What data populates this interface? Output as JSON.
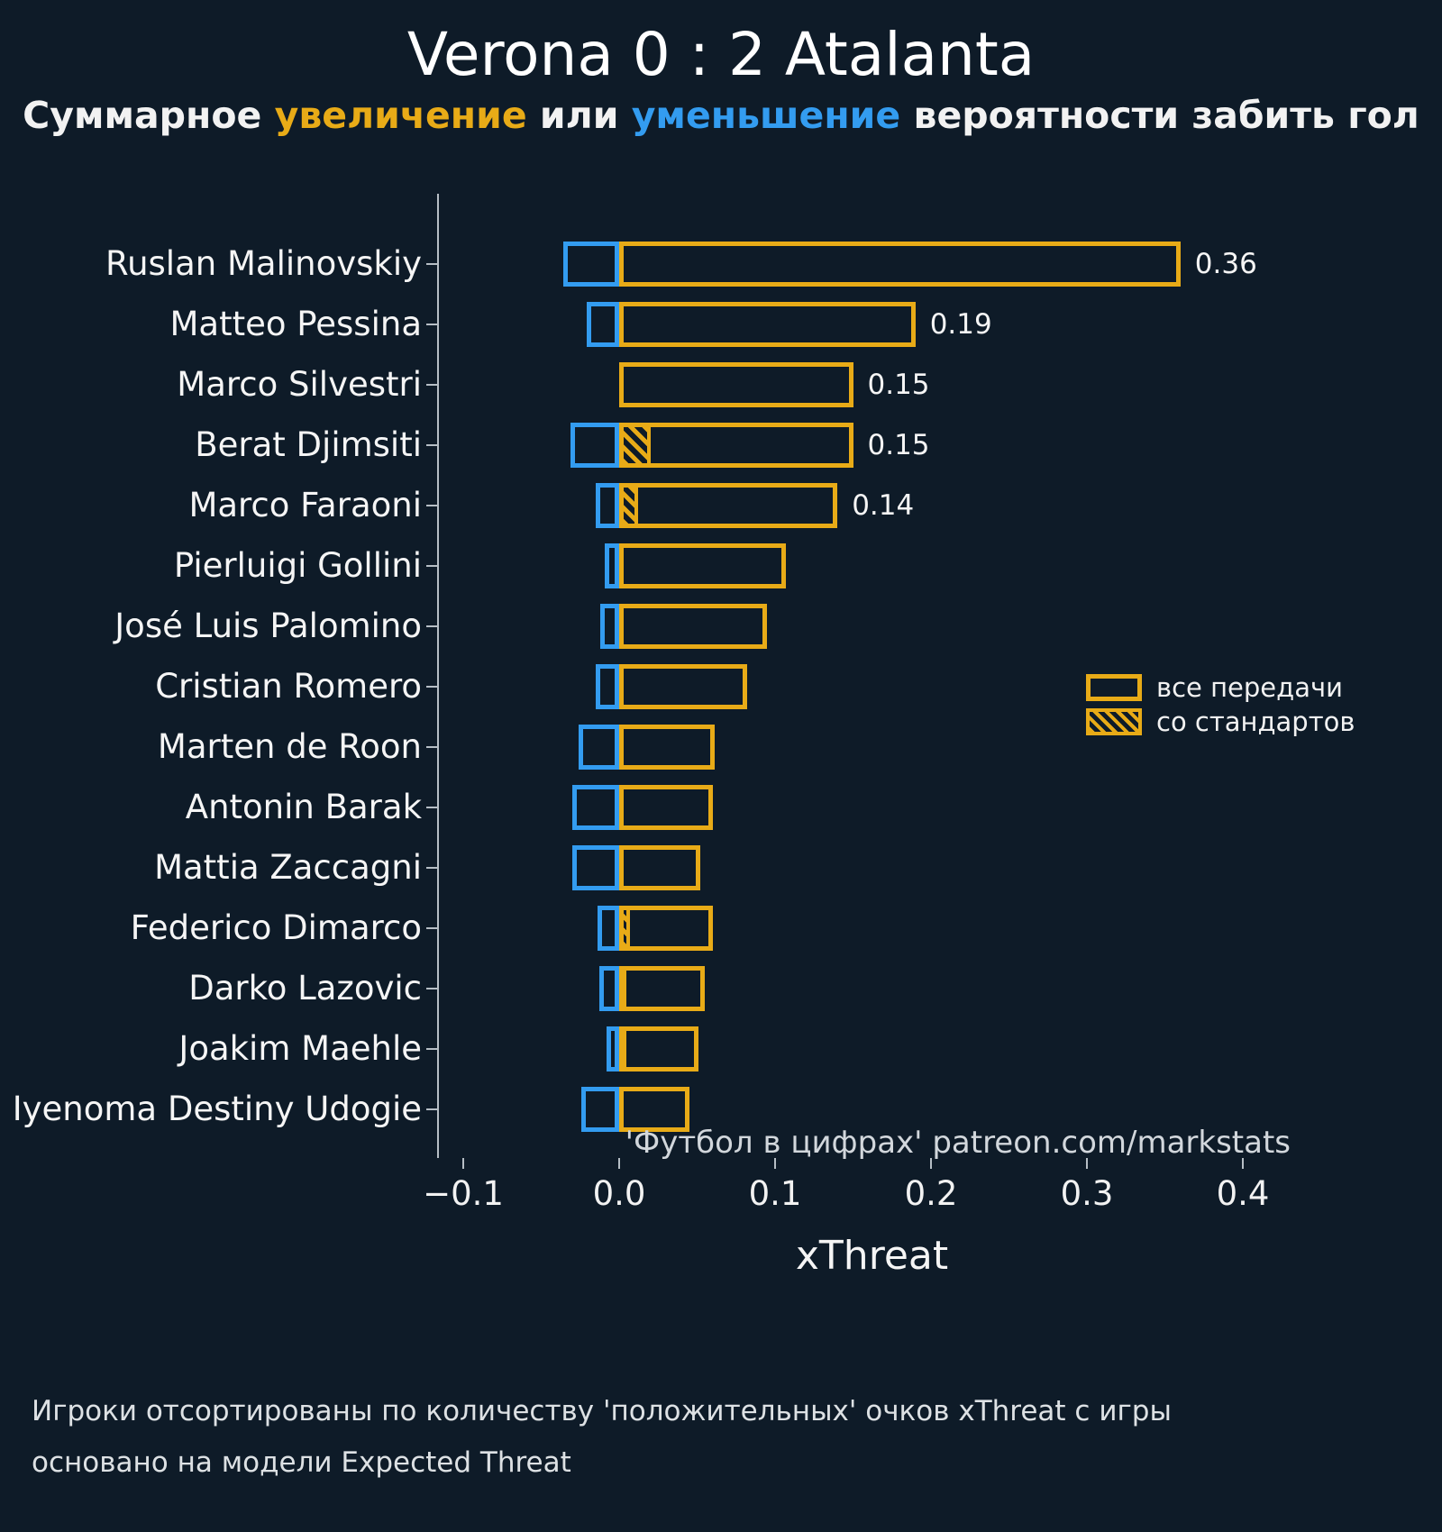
{
  "header": {
    "title": "Verona 0 : 2 Atalanta",
    "subtitle": {
      "part1": "Суммарное ",
      "increase": "увеличение",
      "part2": " или ",
      "decrease": "уменьшение",
      "part3": " вероятности забить гол"
    }
  },
  "chart_data": {
    "type": "bar",
    "orientation": "horizontal",
    "title": "Verona 0 : 2 Atalanta",
    "xlabel": "xThreat",
    "xlim": [
      -0.115,
      0.443
    ],
    "xticks": [
      -0.1,
      0.0,
      0.1,
      0.2,
      0.3,
      0.4
    ],
    "xtick_labels": [
      "−0.1",
      "0.0",
      "0.1",
      "0.2",
      "0.3",
      "0.4"
    ],
    "colors": {
      "positive": "#e8ab17",
      "negative": "#339cf0",
      "background": "#0e1b28"
    },
    "legend_position": "center right",
    "legend": [
      {
        "label": "все передачи",
        "style": "outline"
      },
      {
        "label": "со стандартов",
        "style": "hatched"
      }
    ],
    "players": [
      {
        "name": "Ruslan Malinovskiy",
        "positive": 0.36,
        "negative": -0.036,
        "set_piece": 0,
        "label": "0.36"
      },
      {
        "name": "Matteo Pessina",
        "positive": 0.19,
        "negative": -0.021,
        "set_piece": 0,
        "label": "0.19"
      },
      {
        "name": "Marco Silvestri",
        "positive": 0.15,
        "negative": 0,
        "set_piece": 0,
        "label": "0.15"
      },
      {
        "name": "Berat Djimsiti",
        "positive": 0.15,
        "negative": -0.031,
        "set_piece": 0.02,
        "label": "0.15"
      },
      {
        "name": "Marco Faraoni",
        "positive": 0.14,
        "negative": -0.015,
        "set_piece": 0.012,
        "label": "0.14"
      },
      {
        "name": "Pierluigi Gollini",
        "positive": 0.107,
        "negative": -0.009,
        "set_piece": 0,
        "label": ""
      },
      {
        "name": "José Luis Palomino",
        "positive": 0.095,
        "negative": -0.012,
        "set_piece": 0,
        "label": ""
      },
      {
        "name": "Cristian Romero",
        "positive": 0.082,
        "negative": -0.015,
        "set_piece": 0,
        "label": ""
      },
      {
        "name": "Marten de Roon",
        "positive": 0.061,
        "negative": -0.026,
        "set_piece": 0,
        "label": ""
      },
      {
        "name": "Antonin Barak",
        "positive": 0.06,
        "negative": -0.03,
        "set_piece": 0,
        "label": ""
      },
      {
        "name": "Mattia Zaccagni",
        "positive": 0.052,
        "negative": -0.03,
        "set_piece": 0,
        "label": ""
      },
      {
        "name": "Federico Dimarco",
        "positive": 0.06,
        "negative": -0.014,
        "set_piece": 0.007,
        "label": ""
      },
      {
        "name": "Darko Lazovic",
        "positive": 0.055,
        "negative": -0.013,
        "set_piece": 0.004,
        "label": ""
      },
      {
        "name": "Joakim Maehle",
        "positive": 0.051,
        "negative": -0.008,
        "set_piece": 0.004,
        "label": ""
      },
      {
        "name": "Iyenoma Destiny Udogie",
        "positive": 0.045,
        "negative": -0.024,
        "set_piece": 0,
        "label": ""
      }
    ]
  },
  "watermark": "'Футбол в цифрах' patreon.com/markstats",
  "footer": {
    "line1": "Игроки отсортированы по количеству 'положительных' очков xThreat с игры",
    "line2": "основано на модели Expected Threat"
  }
}
